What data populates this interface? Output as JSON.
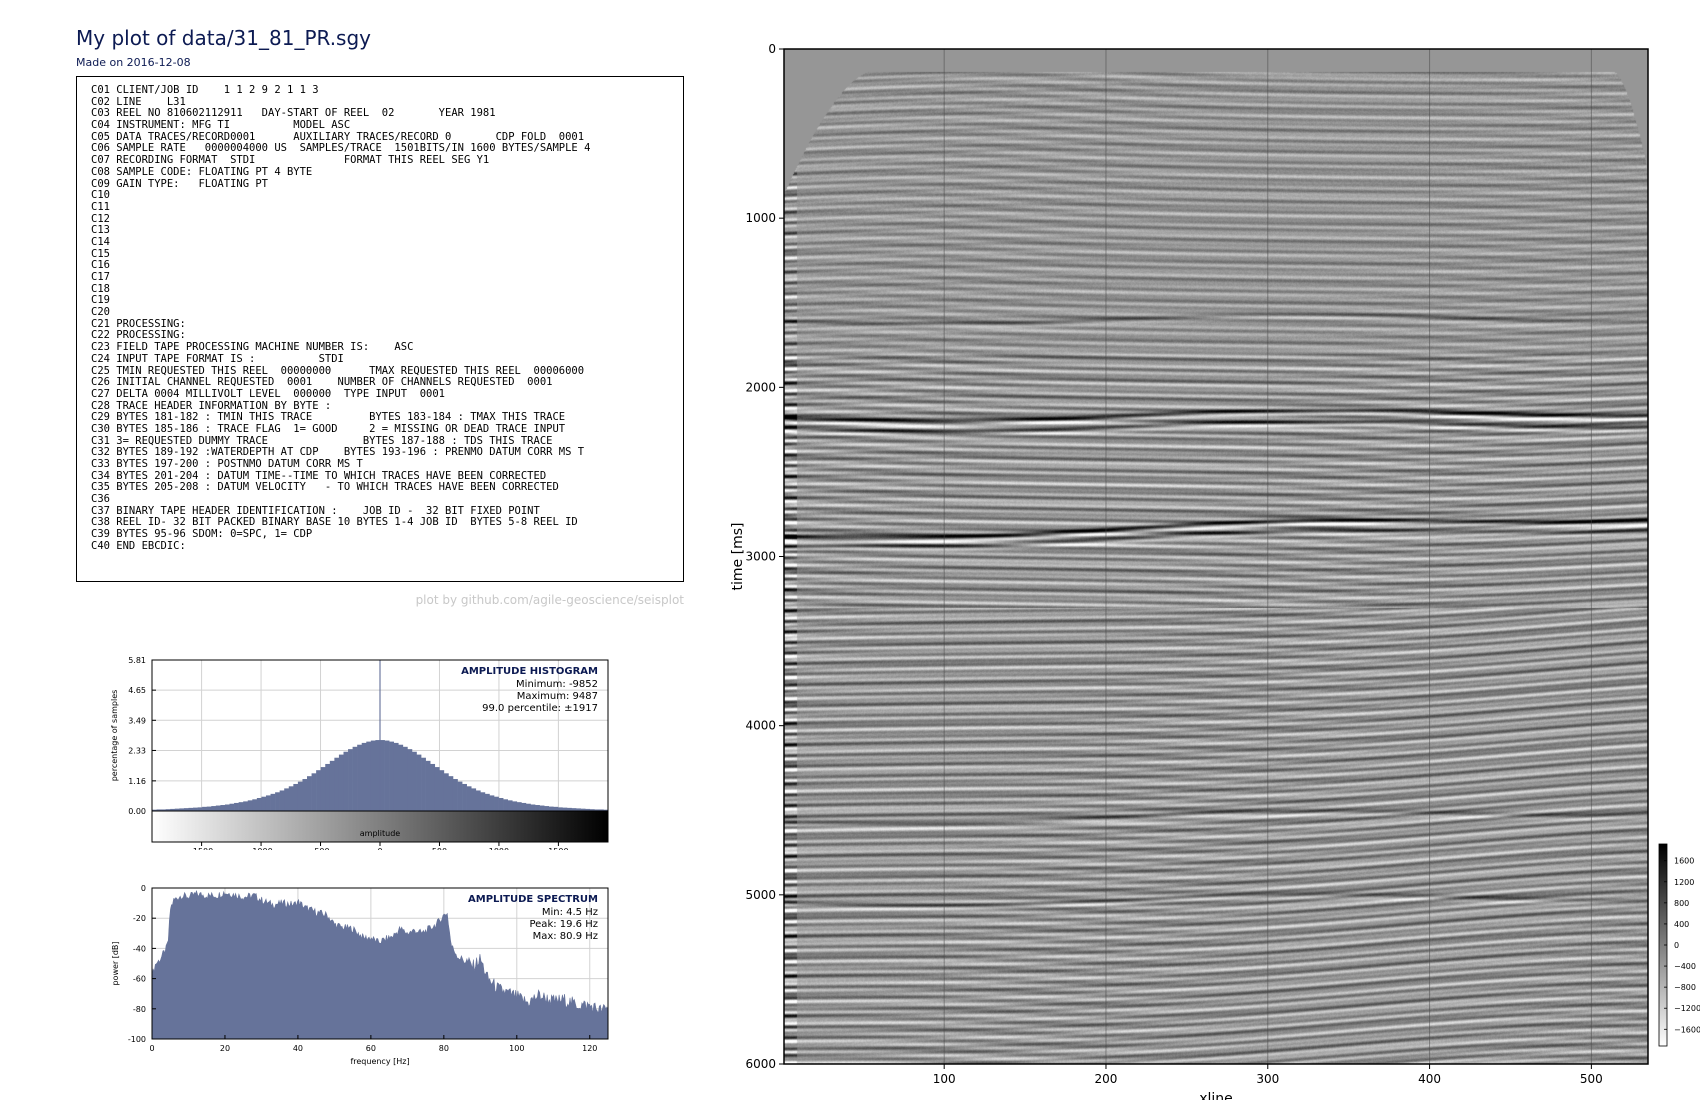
{
  "page": {
    "title": "My plot of data/31_81_PR.sgy",
    "subtitle": "Made on 2016-12-08",
    "credit": "plot by github.com/agile-geoscience/seisplot",
    "header_lines": [
      "C01 CLIENT/JOB ID    1 1 2 9 2 1 1 3",
      "C02 LINE    L31",
      "C03 REEL NO 810602112911   DAY-START OF REEL  02       YEAR 1981",
      "C04 INSTRUMENT: MFG TI          MODEL ASC",
      "C05 DATA TRACES/RECORD0001      AUXILIARY TRACES/RECORD 0       CDP FOLD  0001",
      "C06 SAMPLE RATE   0000004000 US  SAMPLES/TRACE  1501BITS/IN 1600 BYTES/SAMPLE 4",
      "C07 RECORDING FORMAT  STDI              FORMAT THIS REEL SEG Y1",
      "C08 SAMPLE CODE: FLOATING PT 4 BYTE",
      "C09 GAIN TYPE:   FLOATING PT",
      "C10",
      "C11",
      "C12",
      "C13",
      "C14",
      "C15",
      "C16",
      "C17",
      "C18",
      "C19",
      "C20",
      "C21 PROCESSING:",
      "C22 PROCESSING:",
      "C23 FIELD TAPE PROCESSING MACHINE NUMBER IS:    ASC",
      "C24 INPUT TAPE FORMAT IS :          STDI",
      "C25 TMIN REQUESTED THIS REEL  00000000      TMAX REQUESTED THIS REEL  00006000",
      "C26 INITIAL CHANNEL REQUESTED  0001    NUMBER OF CHANNELS REQUESTED  0001",
      "C27 DELTA 0004 MILLIVOLT LEVEL  000000  TYPE INPUT  0001",
      "C28 TRACE HEADER INFORMATION BY BYTE :",
      "C29 BYTES 181-182 : TMIN THIS TRACE         BYTES 183-184 : TMAX THIS TRACE",
      "C30 BYTES 185-186 : TRACE FLAG  1= GOOD     2 = MISSING OR DEAD TRACE INPUT",
      "C31 3= REQUESTED DUMMY TRACE               BYTES 187-188 : TDS THIS TRACE",
      "C32 BYTES 189-192 :WATERDEPTH AT CDP    BYTES 193-196 : PRENMO DATUM CORR MS T",
      "C33 BYTES 197-200 : POSTNMO DATUM CORR MS T",
      "C34 BYTES 201-204 : DATUM TIME--TIME TO WHICH TRACES HAVE BEEN CORRECTED",
      "C35 BYTES 205-208 : DATUM VELOCITY   - TO WHICH TRACES HAVE BEEN CORRECTED",
      "C36",
      "C37 BINARY TAPE HEADER IDENTIFICATION :    JOB ID -  32 BIT FIXED POINT",
      "C38 REEL ID- 32 BIT PACKED BINARY BASE 10 BYTES 1-4 JOB ID  BYTES 5-8 REEL ID",
      "C39 BYTES 95-96 SDOM: 0=SPC, 1= CDP",
      "C40 END EBCDIC:"
    ]
  },
  "chart_data": [
    {
      "type": "bar",
      "title": "AMPLITUDE HISTOGRAM",
      "annotations": [
        "Minimum: -9852",
        "Maximum: 9487",
        "99.0 percentile: ±1917"
      ],
      "ylabel": "percentage of samples",
      "colorbar_label": "amplitude",
      "xlim": [
        -1917,
        1917
      ],
      "ylim": [
        0,
        5.81
      ],
      "xticks": [
        -1500,
        -1000,
        -500,
        0,
        500,
        1000,
        1500
      ],
      "yticks": [
        0.0,
        1.16,
        2.33,
        3.49,
        4.65,
        5.81
      ],
      "bin_width": 38.34,
      "x": [
        -1897.8,
        -1859.5,
        -1821.2,
        -1782.8,
        -1744.5,
        -1706.2,
        -1667.8,
        -1629.5,
        -1591.2,
        -1552.8,
        -1514.5,
        -1476.2,
        -1437.8,
        -1399.5,
        -1361.2,
        -1322.8,
        -1284.5,
        -1246.2,
        -1207.8,
        -1169.5,
        -1131.2,
        -1092.8,
        -1054.5,
        -1016.2,
        -977.8,
        -939.5,
        -901.2,
        -862.8,
        -824.5,
        -786.2,
        -747.8,
        -709.5,
        -671.2,
        -632.8,
        -594.5,
        -556.2,
        -517.8,
        -479.5,
        -441.2,
        -402.8,
        -364.5,
        -326.2,
        -287.8,
        -249.5,
        -211.2,
        -172.8,
        -134.5,
        -96.2,
        -57.8,
        -19.5,
        19.5,
        57.8,
        96.2,
        134.5,
        172.8,
        211.2,
        249.5,
        287.8,
        326.2,
        364.5,
        402.8,
        441.2,
        479.5,
        517.8,
        556.2,
        594.5,
        632.8,
        671.2,
        709.5,
        747.8,
        786.2,
        824.5,
        862.8,
        901.2,
        939.5,
        977.8,
        1016.2,
        1054.5,
        1092.8,
        1131.2,
        1169.5,
        1207.8,
        1246.2,
        1284.5,
        1322.8,
        1361.2,
        1399.5,
        1437.8,
        1476.2,
        1514.5,
        1552.8,
        1591.2,
        1629.5,
        1667.8,
        1706.2,
        1744.5,
        1782.8,
        1821.2,
        1859.5,
        1897.8
      ],
      "values": [
        0.05,
        0.06,
        0.06,
        0.07,
        0.08,
        0.09,
        0.1,
        0.11,
        0.12,
        0.13,
        0.14,
        0.16,
        0.17,
        0.19,
        0.21,
        0.23,
        0.25,
        0.28,
        0.31,
        0.34,
        0.37,
        0.41,
        0.45,
        0.5,
        0.55,
        0.6,
        0.66,
        0.72,
        0.79,
        0.87,
        0.95,
        1.04,
        1.13,
        1.23,
        1.34,
        1.45,
        1.57,
        1.69,
        1.81,
        1.93,
        2.05,
        2.17,
        2.28,
        2.38,
        2.47,
        2.55,
        2.62,
        2.67,
        2.71,
        2.73,
        2.73,
        2.71,
        2.67,
        2.62,
        2.55,
        2.47,
        2.38,
        2.28,
        2.17,
        2.05,
        1.93,
        1.81,
        1.69,
        1.57,
        1.45,
        1.34,
        1.23,
        1.13,
        1.04,
        0.95,
        0.87,
        0.79,
        0.72,
        0.66,
        0.6,
        0.55,
        0.5,
        0.45,
        0.41,
        0.37,
        0.34,
        0.31,
        0.28,
        0.25,
        0.23,
        0.21,
        0.19,
        0.17,
        0.16,
        0.14,
        0.13,
        0.12,
        0.11,
        0.1,
        0.09,
        0.08,
        0.07,
        0.06,
        0.06,
        0.05
      ],
      "spike": {
        "x": 0,
        "value": 5.81
      },
      "fill_color": "#66739a"
    },
    {
      "type": "area",
      "title": "AMPLITUDE SPECTRUM",
      "annotations": [
        "Min: 4.5 Hz",
        "Peak: 19.6 Hz",
        "Max: 80.9 Hz"
      ],
      "xlabel": "frequency [Hz]",
      "ylabel": "power [dB]",
      "xlim": [
        0,
        125
      ],
      "ylim": [
        -100,
        0
      ],
      "xticks": [
        0,
        20,
        40,
        60,
        80,
        100,
        120
      ],
      "yticks": [
        0,
        -20,
        -40,
        -60,
        -80,
        -100
      ],
      "x": [
        0,
        1,
        2,
        3,
        4,
        4.5,
        5,
        6,
        8,
        10,
        12,
        15,
        18,
        19.6,
        22,
        25,
        28,
        30,
        33,
        36,
        39,
        40,
        42,
        45,
        48,
        50,
        52,
        55,
        58,
        60,
        62,
        64,
        66,
        68,
        70,
        72,
        74,
        76,
        78,
        80,
        80.9,
        82,
        84,
        86,
        88,
        90,
        92,
        95,
        98,
        100,
        103,
        106,
        110,
        113,
        116,
        120,
        123,
        125
      ],
      "values": [
        -58,
        -50,
        -48,
        -44,
        -40,
        -34,
        -14,
        -8,
        -5,
        -6,
        -4,
        -5,
        -5,
        -3,
        -4,
        -6,
        -5,
        -8,
        -11,
        -10,
        -11,
        -9,
        -13,
        -16,
        -18,
        -24,
        -26,
        -27,
        -33,
        -33,
        -36,
        -34,
        -32,
        -27,
        -30,
        -28,
        -30,
        -27,
        -24,
        -18,
        -16,
        -38,
        -46,
        -48,
        -52,
        -47,
        -60,
        -67,
        -70,
        -72,
        -76,
        -71,
        -75,
        -74,
        -77,
        -78,
        -81,
        -80
      ],
      "fill_color": "#66739a"
    },
    {
      "type": "heatmap",
      "title": "",
      "xlabel": "xline",
      "ylabel": "time [ms]",
      "xlim": [
        1,
        535
      ],
      "ylim": [
        6000,
        0
      ],
      "xticks": [
        100,
        200,
        300,
        400,
        500
      ],
      "yticks": [
        0,
        1000,
        2000,
        3000,
        4000,
        5000,
        6000
      ],
      "colormap": "greys",
      "colorbar_ticks": [
        1600,
        1200,
        800,
        400,
        0,
        -400,
        -800,
        -1200,
        -1600
      ],
      "colorbar_tick_labels": [
        "1600",
        "1200",
        "800",
        "400",
        "0",
        "−400",
        "−800",
        "−1200",
        "−1600"
      ],
      "colorbar_range": [
        -1917,
        1917
      ],
      "strong_reflectors_ms": [
        {
          "t0": 1600,
          "t1": 1580,
          "a": 0.55
        },
        {
          "t0": 2180,
          "t1": 2140,
          "a": 0.85
        },
        {
          "t0": 2240,
          "t1": 2210,
          "a": 0.7
        },
        {
          "t0": 2880,
          "t1": 2760,
          "a": 1.0
        },
        {
          "t0": 2930,
          "t1": 2820,
          "a": 0.6
        },
        {
          "t0": 5040,
          "t1": 5000,
          "a": 0.45
        },
        {
          "t0": 4560,
          "t1": 4500,
          "a": 0.4
        }
      ]
    }
  ]
}
